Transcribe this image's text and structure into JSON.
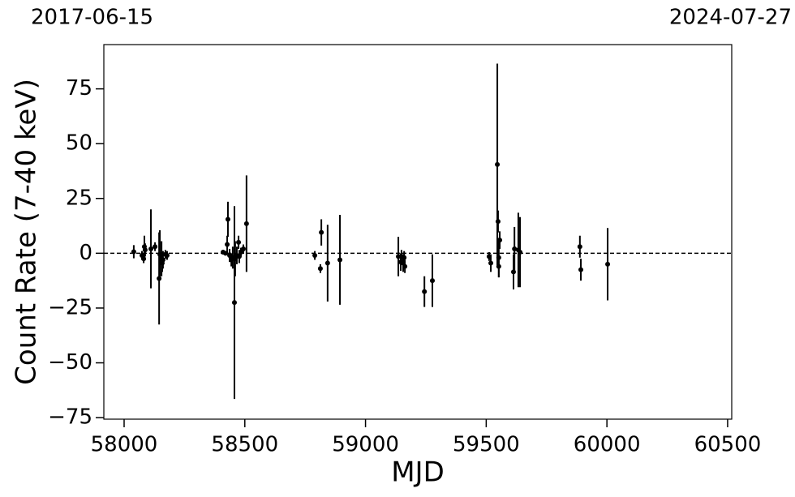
{
  "chart_data": {
    "type": "errorbar_scatter",
    "annotations": [
      "2017-06-15",
      "2024-07-27"
    ],
    "xlabel": "MJD",
    "ylabel": "Count Rate (7-40 keV)",
    "xlim": [
      57916,
      60517
    ],
    "ylim": [
      -75.7,
      95.2
    ],
    "xticks": [
      58000,
      58500,
      59000,
      59500,
      60000,
      60500
    ],
    "yticks": [
      {
        "value": -75,
        "label": "−75"
      },
      {
        "value": -50,
        "label": "−50"
      },
      {
        "value": -25,
        "label": "−25"
      },
      0,
      25,
      50,
      75
    ],
    "hline": 0,
    "series": [
      {
        "color": "#000000",
        "x": [
          58040,
          58074,
          58081,
          58084,
          58087,
          58111,
          58128,
          58145,
          58148,
          58155,
          58158,
          58161,
          58171,
          58178,
          58410,
          58420,
          58427,
          58430,
          58437,
          58444,
          58450,
          58457,
          58460,
          58467,
          58474,
          58477,
          58484,
          58494,
          58507,
          58790,
          58813,
          58817,
          58843,
          58894,
          59136,
          59146,
          59149,
          59156,
          59160,
          59163,
          59244,
          59277,
          59512,
          59519,
          59546,
          59549,
          59552,
          59552,
          59556,
          59613,
          59617,
          59633,
          59640,
          59888,
          59892,
          60003
        ],
        "values": [
          0.7,
          -1,
          -2.5,
          3,
          1.5,
          2,
          3,
          -11.5,
          -0.5,
          -2.5,
          -4.5,
          -3,
          -0.5,
          -1,
          0.5,
          0,
          4,
          15.5,
          -1,
          -3,
          -2,
          -22.5,
          -2.5,
          -1,
          5,
          -1.5,
          0.5,
          2,
          13.5,
          -1,
          -7,
          9.5,
          -4.5,
          -3,
          -1.5,
          -4,
          -1.5,
          -4.5,
          -2,
          -6,
          -17.5,
          -12.5,
          -1.5,
          -4.5,
          40.5,
          14.5,
          -2,
          -6,
          6,
          -8.5,
          2,
          1.5,
          0.5,
          3,
          -7.5,
          -5
        ],
        "errors": [
          3,
          2,
          2,
          5,
          3,
          18,
          2,
          21,
          11,
          8,
          4,
          4,
          2,
          2,
          1,
          1,
          4,
          8,
          3,
          3,
          5,
          44,
          8,
          4,
          3,
          3,
          2,
          2,
          22,
          2,
          2,
          6,
          17.5,
          20.5,
          9,
          4,
          3,
          4,
          3,
          3,
          7,
          12,
          2,
          4,
          46,
          5,
          9,
          5,
          4,
          8,
          10,
          17,
          16,
          5,
          5,
          16.5
        ]
      }
    ]
  }
}
